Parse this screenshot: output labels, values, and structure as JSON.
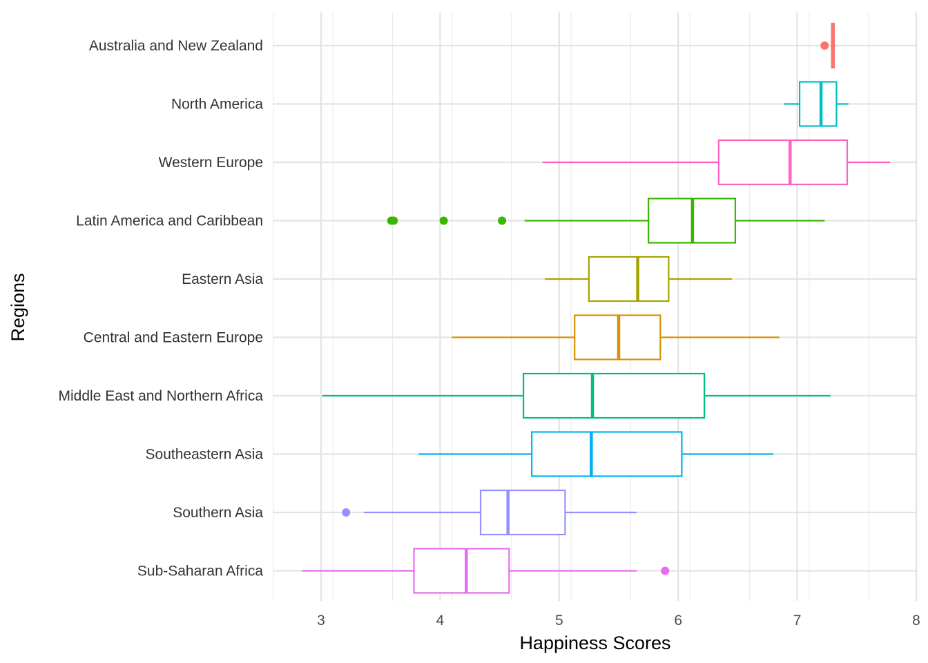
{
  "chart_data": {
    "type": "boxplot",
    "orientation": "horizontal",
    "xlabel": "Happiness Scores",
    "ylabel": "Regions",
    "xlim": [
      2.6,
      8.0
    ],
    "xticks": [
      3,
      4,
      5,
      6,
      7,
      8
    ],
    "grid": true,
    "legend": "none",
    "categories": [
      {
        "name": "Australia and New Zealand",
        "color": "#F8766D",
        "whisker_low": 7.28,
        "q1": 7.29,
        "median": 7.3,
        "q3": 7.31,
        "whisker_high": 7.32,
        "outliers": [
          7.23
        ]
      },
      {
        "name": "North America",
        "color": "#00BFC4",
        "whisker_low": 6.89,
        "q1": 7.02,
        "median": 7.2,
        "q3": 7.33,
        "whisker_high": 7.43,
        "outliers": []
      },
      {
        "name": "Western Europe",
        "color": "#FF61C3",
        "whisker_low": 4.86,
        "q1": 6.34,
        "median": 6.94,
        "q3": 7.42,
        "whisker_high": 7.78,
        "outliers": []
      },
      {
        "name": "Latin America and Caribbean",
        "color": "#39B600",
        "whisker_low": 4.71,
        "q1": 5.75,
        "median": 6.12,
        "q3": 6.48,
        "whisker_high": 7.23,
        "outliers": [
          3.59,
          3.61,
          4.03,
          4.52
        ]
      },
      {
        "name": "Eastern Asia",
        "color": "#A3A500",
        "whisker_low": 4.88,
        "q1": 5.25,
        "median": 5.66,
        "q3": 5.92,
        "whisker_high": 6.45,
        "outliers": []
      },
      {
        "name": "Central and Eastern Europe",
        "color": "#D89000",
        "whisker_low": 4.1,
        "q1": 5.13,
        "median": 5.5,
        "q3": 5.85,
        "whisker_high": 6.85,
        "outliers": []
      },
      {
        "name": "Middle East and Northern Africa",
        "color": "#00BF7D",
        "whisker_low": 3.01,
        "q1": 4.7,
        "median": 5.28,
        "q3": 6.22,
        "whisker_high": 7.28,
        "outliers": []
      },
      {
        "name": "Southeastern Asia",
        "color": "#00B0F6",
        "whisker_low": 3.82,
        "q1": 4.77,
        "median": 5.27,
        "q3": 6.03,
        "whisker_high": 6.8,
        "outliers": []
      },
      {
        "name": "Southern Asia",
        "color": "#9590FF",
        "whisker_low": 3.36,
        "q1": 4.34,
        "median": 4.57,
        "q3": 5.05,
        "whisker_high": 5.65,
        "outliers": [
          3.21
        ]
      },
      {
        "name": "Sub-Saharan Africa",
        "color": "#E76BF3",
        "whisker_low": 2.84,
        "q1": 3.78,
        "median": 4.22,
        "q3": 4.58,
        "whisker_high": 5.65,
        "outliers": [
          5.89
        ]
      }
    ]
  }
}
